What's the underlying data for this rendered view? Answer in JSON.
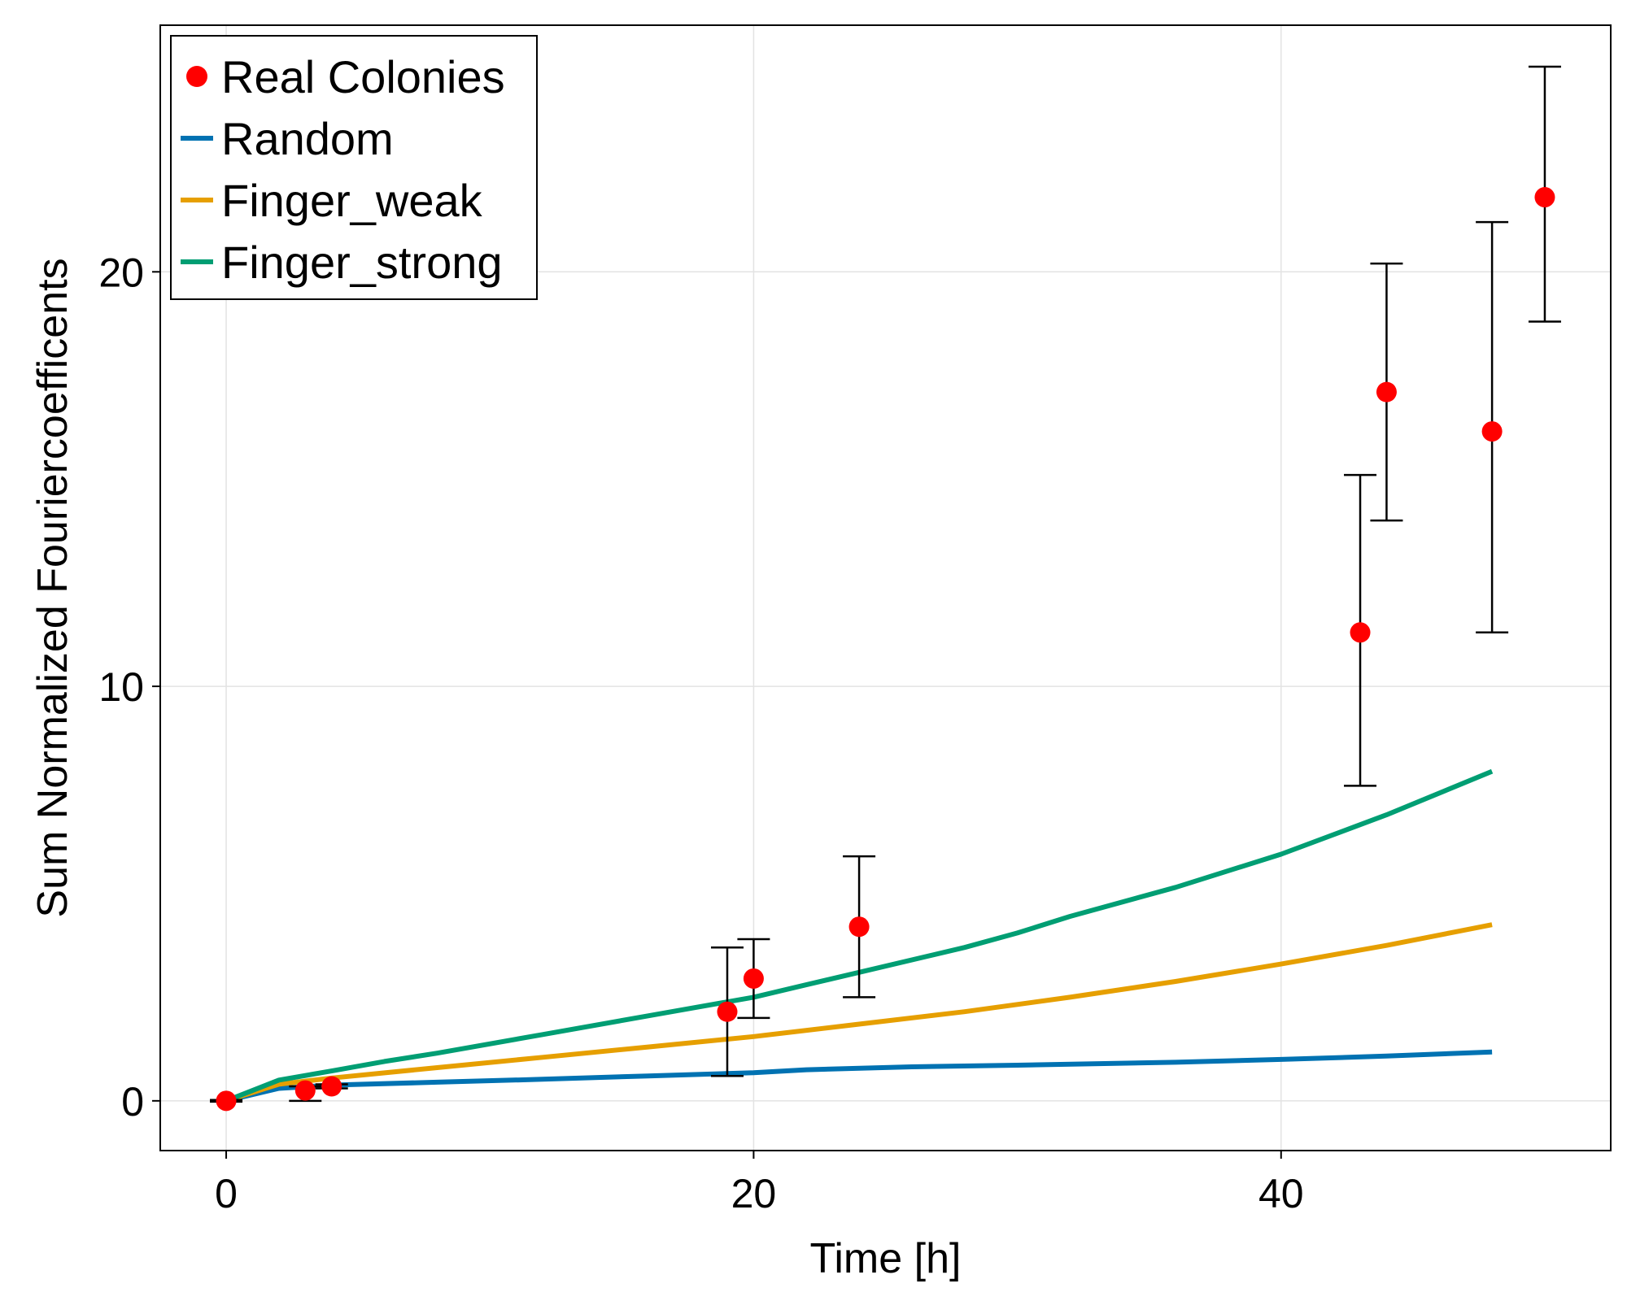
{
  "chart_data": {
    "type": "scatter",
    "xlabel": "Time [h]",
    "ylabel": "Sum Normalized Fouriercoefficents",
    "xlim": [
      -2.5,
      52.5
    ],
    "ylim": [
      -1.2,
      25.95
    ],
    "xticks": [
      0,
      20,
      40
    ],
    "yticks": [
      0,
      10,
      20
    ],
    "xtick_labels": [
      "0",
      "20",
      "40"
    ],
    "ytick_labels": [
      "0",
      "10",
      "20"
    ],
    "grid": true,
    "legend_position": "top-left",
    "series": [
      {
        "name": "Real Colonies",
        "kind": "scatter_errorbar",
        "color": "#ff0000",
        "x": [
          0,
          3,
          4,
          19,
          20,
          24,
          43,
          44,
          48,
          50
        ],
        "y": [
          0.0,
          0.25,
          0.35,
          2.15,
          2.95,
          4.2,
          11.3,
          17.1,
          16.15,
          21.8
        ],
        "err_low": [
          -0.02,
          0.0,
          0.3,
          0.6,
          2.0,
          2.5,
          7.6,
          14.0,
          11.3,
          18.8
        ],
        "err_high": [
          0.02,
          0.35,
          0.4,
          3.7,
          3.9,
          5.9,
          15.1,
          20.2,
          21.2,
          24.95
        ]
      },
      {
        "name": "Random",
        "kind": "line",
        "color": "#0072b2",
        "x": [
          0,
          2,
          4,
          8,
          12,
          16,
          20,
          22,
          26,
          30,
          36,
          40,
          44,
          48
        ],
        "y": [
          0,
          0.3,
          0.38,
          0.45,
          0.52,
          0.6,
          0.68,
          0.75,
          0.82,
          0.86,
          0.93,
          1.0,
          1.08,
          1.18
        ]
      },
      {
        "name": "Finger_weak",
        "kind": "line",
        "color": "#e69f00",
        "x": [
          0,
          2,
          4,
          8,
          12,
          16,
          20,
          24,
          28,
          32,
          36,
          40,
          44,
          48
        ],
        "y": [
          0,
          0.4,
          0.55,
          0.8,
          1.05,
          1.3,
          1.55,
          1.85,
          2.15,
          2.5,
          2.88,
          3.3,
          3.75,
          4.25
        ]
      },
      {
        "name": "Finger_strong",
        "kind": "line",
        "color": "#009e73",
        "x": [
          0,
          2,
          4,
          6,
          8,
          12,
          16,
          20,
          22,
          24,
          28,
          30,
          32,
          36,
          40,
          44,
          48
        ],
        "y": [
          0,
          0.5,
          0.72,
          0.95,
          1.15,
          1.6,
          2.05,
          2.5,
          2.8,
          3.1,
          3.7,
          4.05,
          4.45,
          5.15,
          5.95,
          6.9,
          7.95
        ]
      }
    ]
  }
}
